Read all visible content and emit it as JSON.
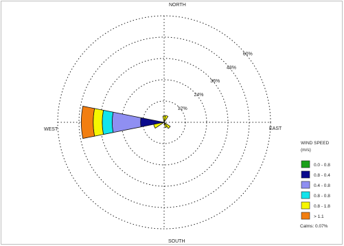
{
  "chart_data": {
    "type": "windrose",
    "directions": {
      "north": "NORTH",
      "south": "SOUTH",
      "east": "EAST",
      "west": "WEST"
    },
    "ring_labels": [
      "12%",
      "24%",
      "36%",
      "48%",
      "60%"
    ],
    "ring_values": [
      12,
      24,
      36,
      48,
      60
    ],
    "legend": {
      "title_line1": "WIND SPEED",
      "title_line2": "(m/s)",
      "classes": [
        {
          "label": "0.0 - 0.8",
          "color": "#1aa01a"
        },
        {
          "label": "0.8 - 0.4",
          "color": "#0a0a8c"
        },
        {
          "label": "0.4 - 0.8",
          "color": "#8f8ff2"
        },
        {
          "label": "0.8 - 0.8",
          "color": "#12e4ec"
        },
        {
          "label": "0.8 - 1.8",
          "color": "#f6f600"
        },
        {
          "label": "> 1.1",
          "color": "#f27e10"
        }
      ],
      "calms": "Calms: 0.07%"
    },
    "sectors": [
      {
        "direction_deg": 270,
        "width_deg": 22.5,
        "cumulative_pct": [
          0,
          0,
          13.3,
          29.3,
          34.9,
          40.0,
          46.7
        ]
      },
      {
        "direction_deg": 247.5,
        "width_deg": 22.5,
        "cumulative_pct": [
          0,
          0,
          0,
          0,
          0,
          6.0,
          6.0
        ]
      },
      {
        "direction_deg": 0,
        "width_deg": 22.5,
        "cumulative_pct": [
          0,
          0,
          0,
          0,
          0,
          3.5,
          3.5
        ]
      },
      {
        "direction_deg": 22.5,
        "width_deg": 22.5,
        "cumulative_pct": [
          0,
          0,
          0,
          0,
          0,
          4.0,
          4.0
        ]
      },
      {
        "direction_deg": 157.5,
        "width_deg": 22.5,
        "cumulative_pct": [
          0,
          0,
          0,
          0,
          0,
          3.0,
          3.0
        ]
      },
      {
        "direction_deg": 135,
        "width_deg": 22.5,
        "cumulative_pct": [
          0,
          0,
          0,
          0,
          0,
          4.2,
          4.2
        ]
      }
    ]
  }
}
